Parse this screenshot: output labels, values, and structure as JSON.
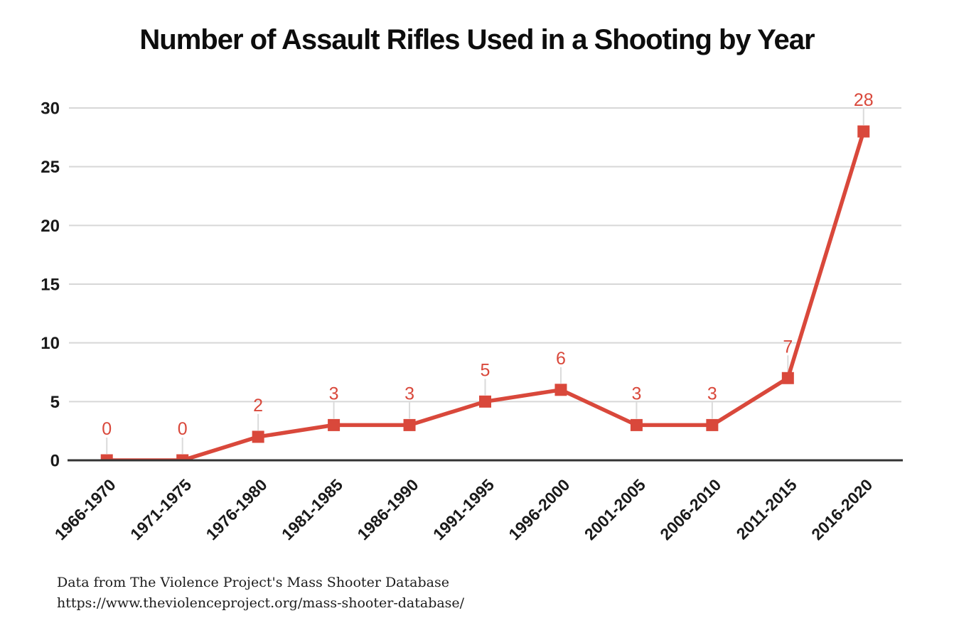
{
  "title": "Number of Assault Rifles Used in a Shooting by Year",
  "chart_data": {
    "type": "line",
    "title": "Number of Assault Rifles Used in a Shooting by Year",
    "categories": [
      "1966-1970",
      "1971-1975",
      "1976-1980",
      "1981-1985",
      "1986-1990",
      "1991-1995",
      "1996-2000",
      "2001-2005",
      "2006-2010",
      "2011-2015",
      "2016-2020"
    ],
    "values": [
      0,
      0,
      2,
      3,
      3,
      5,
      6,
      3,
      3,
      7,
      28
    ],
    "data_labels": [
      "0",
      "0",
      "2",
      "3",
      "3",
      "5",
      "6",
      "3",
      "3",
      "7",
      "28"
    ],
    "xlabel": "",
    "ylabel": "",
    "ylim": [
      0,
      30
    ],
    "yticks": [
      0,
      5,
      10,
      15,
      20,
      25,
      30
    ],
    "grid": true,
    "legend_position": "none",
    "marker": "square",
    "line_color": "#d9483b",
    "data_label_color": "#d9483b",
    "gridline_color": "#d7d7d7",
    "leader_line_color": "#dadada",
    "axis_color": "#333333",
    "tick_label_color": "#1a1a1a"
  },
  "source": {
    "line1": "Data from The Violence Project's Mass Shooter Database",
    "line2": "https://www.theviolenceproject.org/mass-shooter-database/"
  }
}
